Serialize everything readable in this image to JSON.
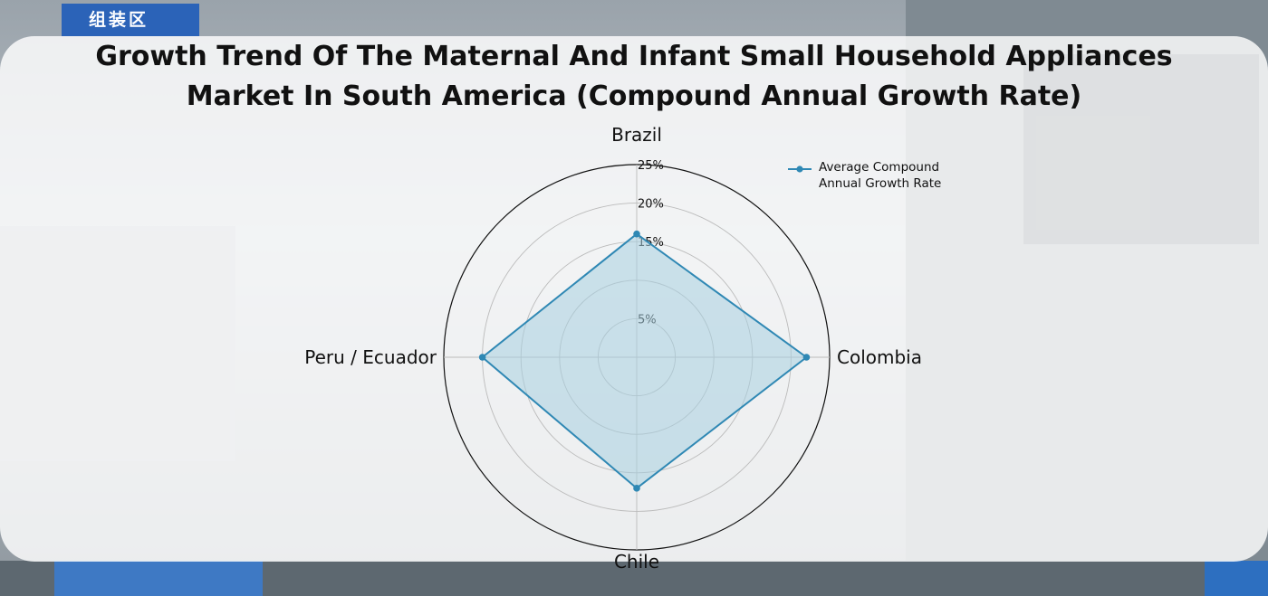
{
  "background": {
    "sign_text": "组装区"
  },
  "title_lines": [
    "Growth Trend Of The Maternal And Infant Small Household Appliances",
    "Market In South America (Compound Annual Growth Rate)"
  ],
  "colors": {
    "series": "#2f88b4",
    "fill": "#a8cfe0",
    "grid": "#bbbbbb",
    "outer": "#111111"
  },
  "chart_data": {
    "type": "radar",
    "title": "Growth Trend Of The Maternal And Infant Small Household Appliances Market In South America (Compound Annual Growth Rate)",
    "categories": [
      "Brazil",
      "Colombia",
      "Chile",
      "Peru / Ecuador"
    ],
    "series": [
      {
        "name": "Average Compound Annual Growth Rate",
        "values": [
          16,
          22,
          17,
          20
        ]
      }
    ],
    "rlim": [
      0,
      25
    ],
    "ring_values": [
      5,
      10,
      15,
      20,
      25
    ],
    "tick_labels": [
      {
        "value": 5,
        "label": "5%"
      },
      {
        "value": 15,
        "label": "15%"
      },
      {
        "value": 20,
        "label": "20%"
      },
      {
        "value": 25,
        "label": "25%"
      }
    ],
    "legend_position": "top-right",
    "grid": true
  }
}
